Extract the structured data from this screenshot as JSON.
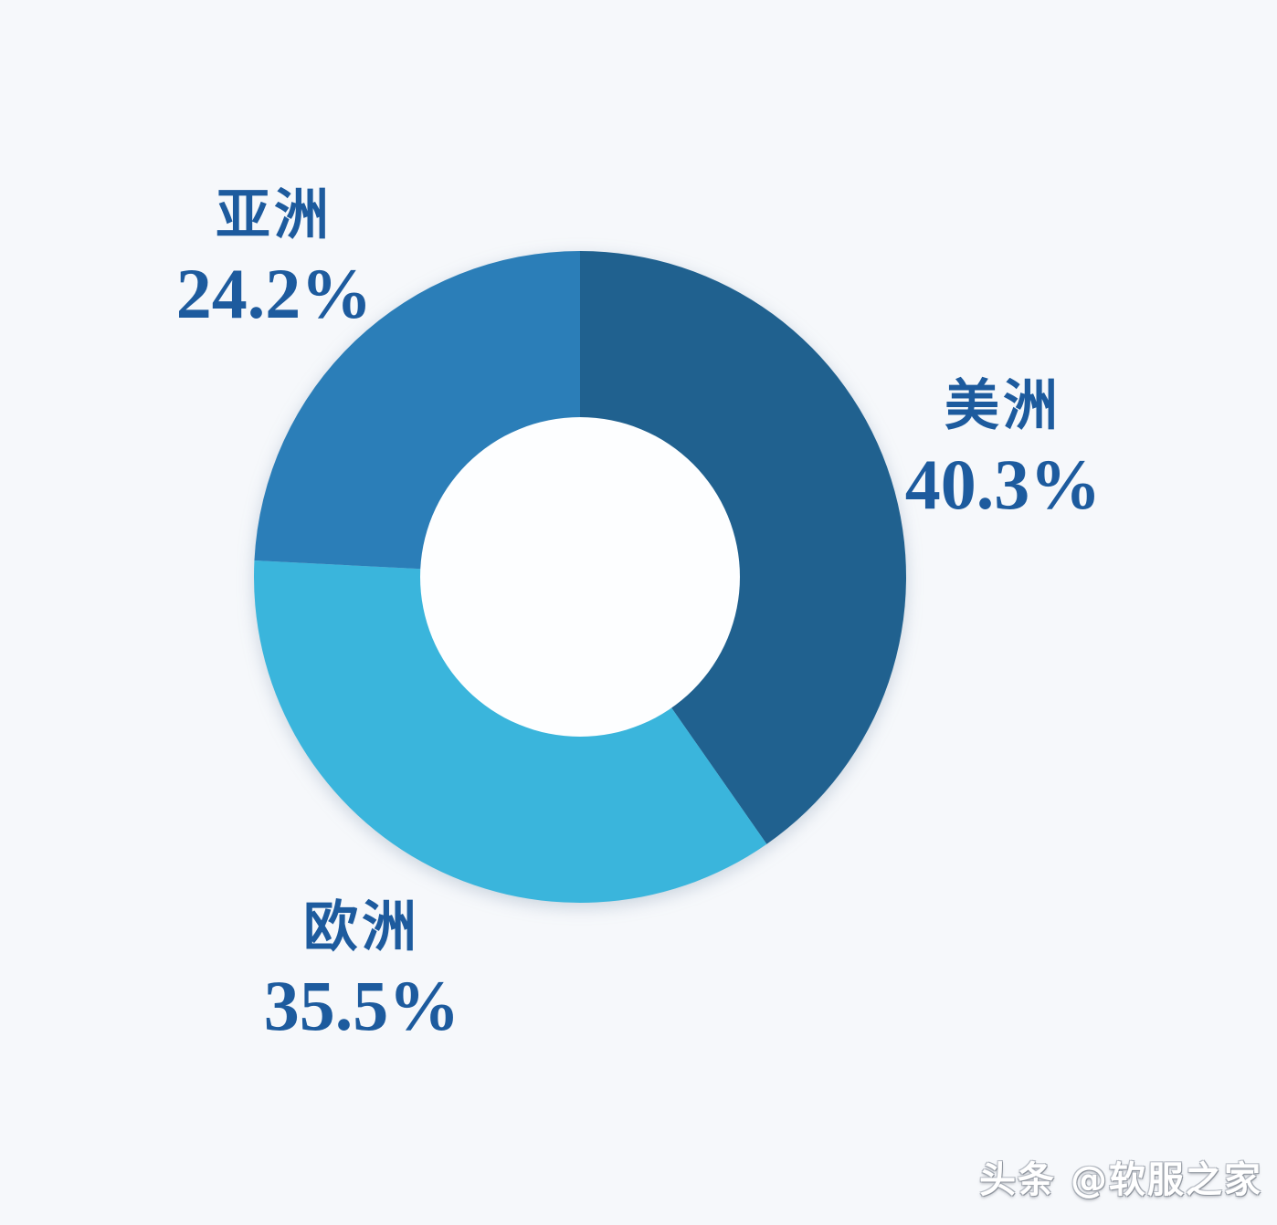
{
  "canvas": {
    "background": "#f6f8fb",
    "hole_color": "#fdfeff",
    "label_text_color": "#1d5b9e"
  },
  "chart_data": {
    "type": "pie",
    "donut": true,
    "inner_radius_ratio": 0.49,
    "start_angle_deg": 0,
    "direction": "clockwise",
    "labels_position": "outside",
    "legend": "none",
    "title": "",
    "slices": [
      {
        "name": "americas",
        "label": "美洲",
        "value": 40.3,
        "display_value": "40.3%",
        "color": "#20618f"
      },
      {
        "name": "europe",
        "label": "欧洲",
        "value": 35.5,
        "display_value": "35.5%",
        "color": "#3ab5dc"
      },
      {
        "name": "asia",
        "label": "亚洲",
        "value": 24.2,
        "display_value": "24.2%",
        "color": "#2b7eb8"
      }
    ]
  },
  "watermark": {
    "text": "头条 @软服之家"
  }
}
